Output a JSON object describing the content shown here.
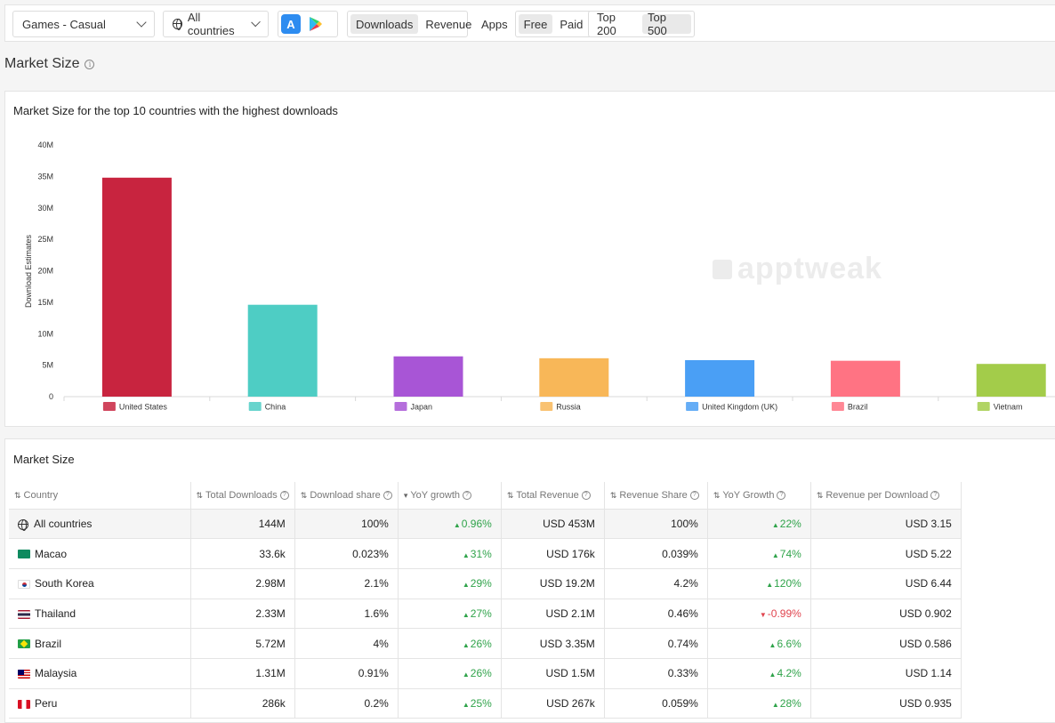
{
  "toolbar": {
    "category": "Games - Casual",
    "country": "All countries",
    "metric_options": [
      "Downloads",
      "Revenue"
    ],
    "metric_selected": "Downloads",
    "apps_label": "Apps",
    "price_options": [
      "Free",
      "Paid"
    ],
    "price_selected": "Free",
    "rank_options": [
      "Top 200",
      "Top 500"
    ],
    "rank_selected": "Top 500",
    "store_icons": [
      "app-store-icon",
      "google-play-icon"
    ]
  },
  "page_title": "Market Size",
  "chart": {
    "title": "Market Size for the top 10 countries with the highest downloads",
    "watermark": "apptweak"
  },
  "chart_data": {
    "type": "bar",
    "title": "Market Size for the top 10 countries with the highest downloads",
    "ylabel": "Download Estimates",
    "xlabel": "",
    "ylim": [
      0,
      40000000
    ],
    "yticks": [
      "0",
      "5M",
      "10M",
      "15M",
      "20M",
      "25M",
      "30M",
      "35M",
      "40M"
    ],
    "categories": [
      "United States",
      "China",
      "Japan",
      "Russia",
      "United Kingdom (UK)",
      "Brazil",
      "Vietnam"
    ],
    "values": [
      34800000,
      14600000,
      6400000,
      6100000,
      5800000,
      5700000,
      5200000
    ],
    "colors": [
      "#c8243f",
      "#4ecdc4",
      "#a855d6",
      "#f8b758",
      "#4a9ff5",
      "#ff7383",
      "#a3cc4a"
    ],
    "legend": "none",
    "grid": false
  },
  "table": {
    "title": "Market Size",
    "columns": [
      "Country",
      "Total Downloads",
      "Download share",
      "YoY growth",
      "Total Revenue",
      "Revenue Share",
      "YoY Growth",
      "Revenue per Download"
    ],
    "rows": [
      {
        "country": "All countries",
        "flag": "globe-icon",
        "downloads": "144M",
        "dl_share": "100%",
        "dl_growth": "0.96%",
        "dl_dir": "up",
        "revenue": "USD 453M",
        "rev_share": "100%",
        "rev_growth": "22%",
        "rev_dir": "up",
        "rpd": "USD 3.15"
      },
      {
        "country": "Macao",
        "flag": "mo",
        "downloads": "33.6k",
        "dl_share": "0.023%",
        "dl_growth": "31%",
        "dl_dir": "up",
        "revenue": "USD 176k",
        "rev_share": "0.039%",
        "rev_growth": "74%",
        "rev_dir": "up",
        "rpd": "USD 5.22"
      },
      {
        "country": "South Korea",
        "flag": "kr",
        "downloads": "2.98M",
        "dl_share": "2.1%",
        "dl_growth": "29%",
        "dl_dir": "up",
        "revenue": "USD 19.2M",
        "rev_share": "4.2%",
        "rev_growth": "120%",
        "rev_dir": "up",
        "rpd": "USD 6.44"
      },
      {
        "country": "Thailand",
        "flag": "th",
        "downloads": "2.33M",
        "dl_share": "1.6%",
        "dl_growth": "27%",
        "dl_dir": "up",
        "revenue": "USD 2.1M",
        "rev_share": "0.46%",
        "rev_growth": "-0.99%",
        "rev_dir": "down",
        "rpd": "USD 0.902"
      },
      {
        "country": "Brazil",
        "flag": "br",
        "downloads": "5.72M",
        "dl_share": "4%",
        "dl_growth": "26%",
        "dl_dir": "up",
        "revenue": "USD 3.35M",
        "rev_share": "0.74%",
        "rev_growth": "6.6%",
        "rev_dir": "up",
        "rpd": "USD 0.586"
      },
      {
        "country": "Malaysia",
        "flag": "my",
        "downloads": "1.31M",
        "dl_share": "0.91%",
        "dl_growth": "26%",
        "dl_dir": "up",
        "revenue": "USD 1.5M",
        "rev_share": "0.33%",
        "rev_growth": "4.2%",
        "rev_dir": "up",
        "rpd": "USD 1.14"
      },
      {
        "country": "Peru",
        "flag": "pe",
        "downloads": "286k",
        "dl_share": "0.2%",
        "dl_growth": "25%",
        "dl_dir": "up",
        "revenue": "USD 267k",
        "rev_share": "0.059%",
        "rev_growth": "28%",
        "rev_dir": "up",
        "rpd": "USD 0.935"
      }
    ]
  }
}
